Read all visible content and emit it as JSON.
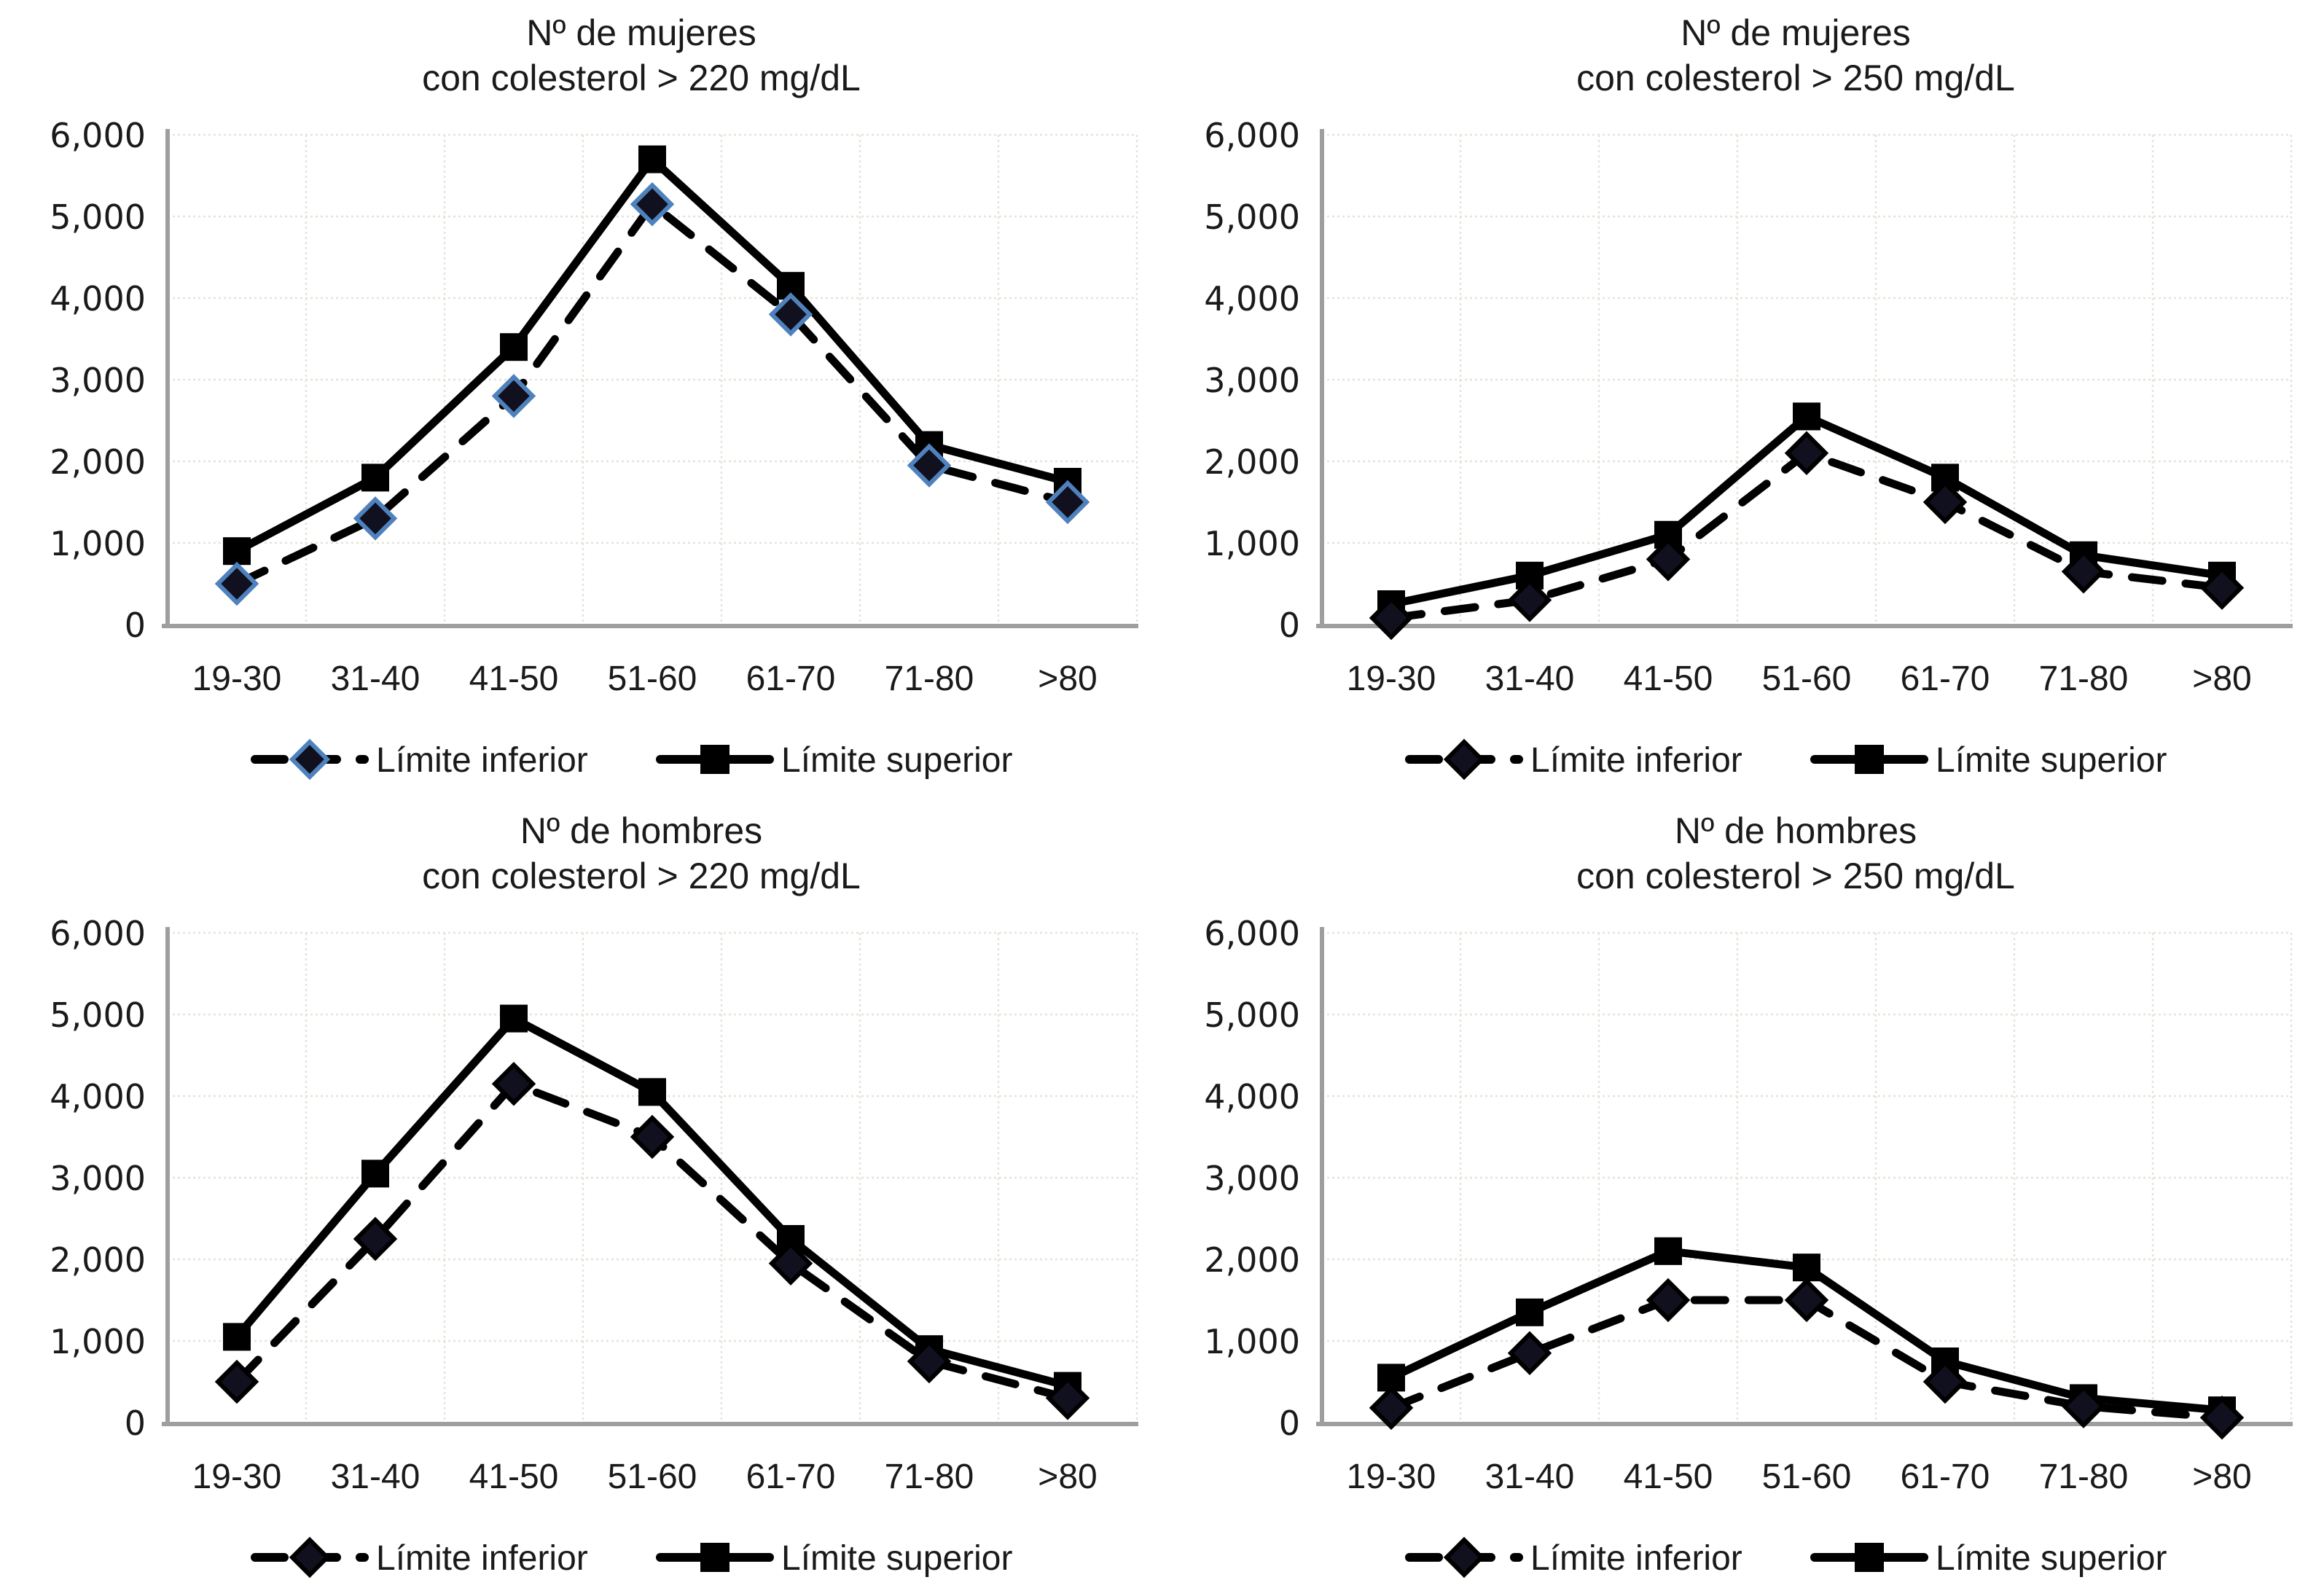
{
  "page": {
    "background": "#ffffff",
    "description_labels": {
      "y_ticks": [
        "6,000",
        "5,000",
        "4,000",
        "3,000",
        "2,000",
        "1,000",
        "0"
      ],
      "x_categories": [
        "19-30",
        "31-40",
        "41-50",
        "51-60",
        "61-70",
        "71-80",
        ">80"
      ]
    }
  },
  "legend": {
    "inferior_label": "Límite inferior",
    "superior_label": "Límite superior"
  },
  "colors": {
    "series_line": "#000000",
    "text": "#1a1a1a",
    "gridline": "#e4e4da",
    "axis": "#9e9e9e",
    "diamond_fill": "#10101e",
    "diamond_outline_top_left_chart": "#4f81bd",
    "diamond_outline_other_charts": "#000000"
  },
  "chart_data": [
    {
      "type": "line",
      "title_line1": "Nº de mujeres",
      "title_line2": "con colesterol > 220 mg/dL",
      "categories": [
        "19-30",
        "31-40",
        "41-50",
        "51-60",
        "61-70",
        "71-80",
        ">80"
      ],
      "series": [
        {
          "name": "Límite inferior",
          "style": "dashed",
          "marker": "diamond",
          "marker_outline": "#4f81bd",
          "values": [
            500,
            1300,
            2800,
            5150,
            3800,
            1950,
            1500
          ]
        },
        {
          "name": "Límite superior",
          "style": "solid",
          "marker": "square",
          "marker_outline": "#000000",
          "values": [
            900,
            1800,
            3400,
            5700,
            4150,
            2200,
            1750
          ]
        }
      ],
      "ylim": [
        0,
        6000
      ],
      "yticks": [
        "6,000",
        "5,000",
        "4,000",
        "3,000",
        "2,000",
        "1,000",
        "0"
      ],
      "grid": true,
      "legend_position": "bottom"
    },
    {
      "type": "line",
      "title_line1": "Nº de mujeres",
      "title_line2": "con colesterol > 250 mg/dL",
      "categories": [
        "19-30",
        "31-40",
        "41-50",
        "51-60",
        "61-70",
        "71-80",
        ">80"
      ],
      "series": [
        {
          "name": "Límite inferior",
          "style": "dashed",
          "marker": "diamond",
          "marker_outline": "#000000",
          "values": [
            80,
            300,
            800,
            2100,
            1500,
            650,
            450
          ]
        },
        {
          "name": "Límite superior",
          "style": "solid",
          "marker": "square",
          "marker_outline": "#000000",
          "values": [
            250,
            600,
            1100,
            2550,
            1800,
            850,
            600
          ]
        }
      ],
      "ylim": [
        0,
        6000
      ],
      "yticks": [
        "6,000",
        "5,000",
        "4,000",
        "3,000",
        "2,000",
        "1,000",
        "0"
      ],
      "grid": true,
      "legend_position": "bottom"
    },
    {
      "type": "line",
      "title_line1": "Nº de hombres",
      "title_line2": "con colesterol > 220 mg/dL",
      "categories": [
        "19-30",
        "31-40",
        "41-50",
        "51-60",
        "61-70",
        "71-80",
        ">80"
      ],
      "series": [
        {
          "name": "Límite inferior",
          "style": "dashed",
          "marker": "diamond",
          "marker_outline": "#000000",
          "values": [
            500,
            2250,
            4150,
            3500,
            1950,
            750,
            300
          ]
        },
        {
          "name": "Límite superior",
          "style": "solid",
          "marker": "square",
          "marker_outline": "#000000",
          "values": [
            1050,
            3050,
            4950,
            4050,
            2250,
            900,
            450
          ]
        }
      ],
      "ylim": [
        0,
        6000
      ],
      "yticks": [
        "6,000",
        "5,000",
        "4,000",
        "3,000",
        "2,000",
        "1,000",
        "0"
      ],
      "grid": true,
      "legend_position": "bottom"
    },
    {
      "type": "line",
      "title_line1": "Nº de hombres",
      "title_line2": "con colesterol > 250 mg/dL",
      "categories": [
        "19-30",
        "31-40",
        "41-50",
        "51-60",
        "61-70",
        "71-80",
        ">80"
      ],
      "series": [
        {
          "name": "Límite inferior",
          "style": "dashed",
          "marker": "diamond",
          "marker_outline": "#000000",
          "values": [
            180,
            850,
            1500,
            1500,
            500,
            200,
            60
          ]
        },
        {
          "name": "Límite superior",
          "style": "solid",
          "marker": "square",
          "marker_outline": "#000000",
          "values": [
            550,
            1350,
            2100,
            1900,
            750,
            300,
            150
          ]
        }
      ],
      "ylim": [
        0,
        6000
      ],
      "yticks": [
        "6,000",
        "5,000",
        "4,000",
        "3,000",
        "2,000",
        "1,000",
        "0"
      ],
      "grid": true,
      "legend_position": "bottom"
    }
  ]
}
